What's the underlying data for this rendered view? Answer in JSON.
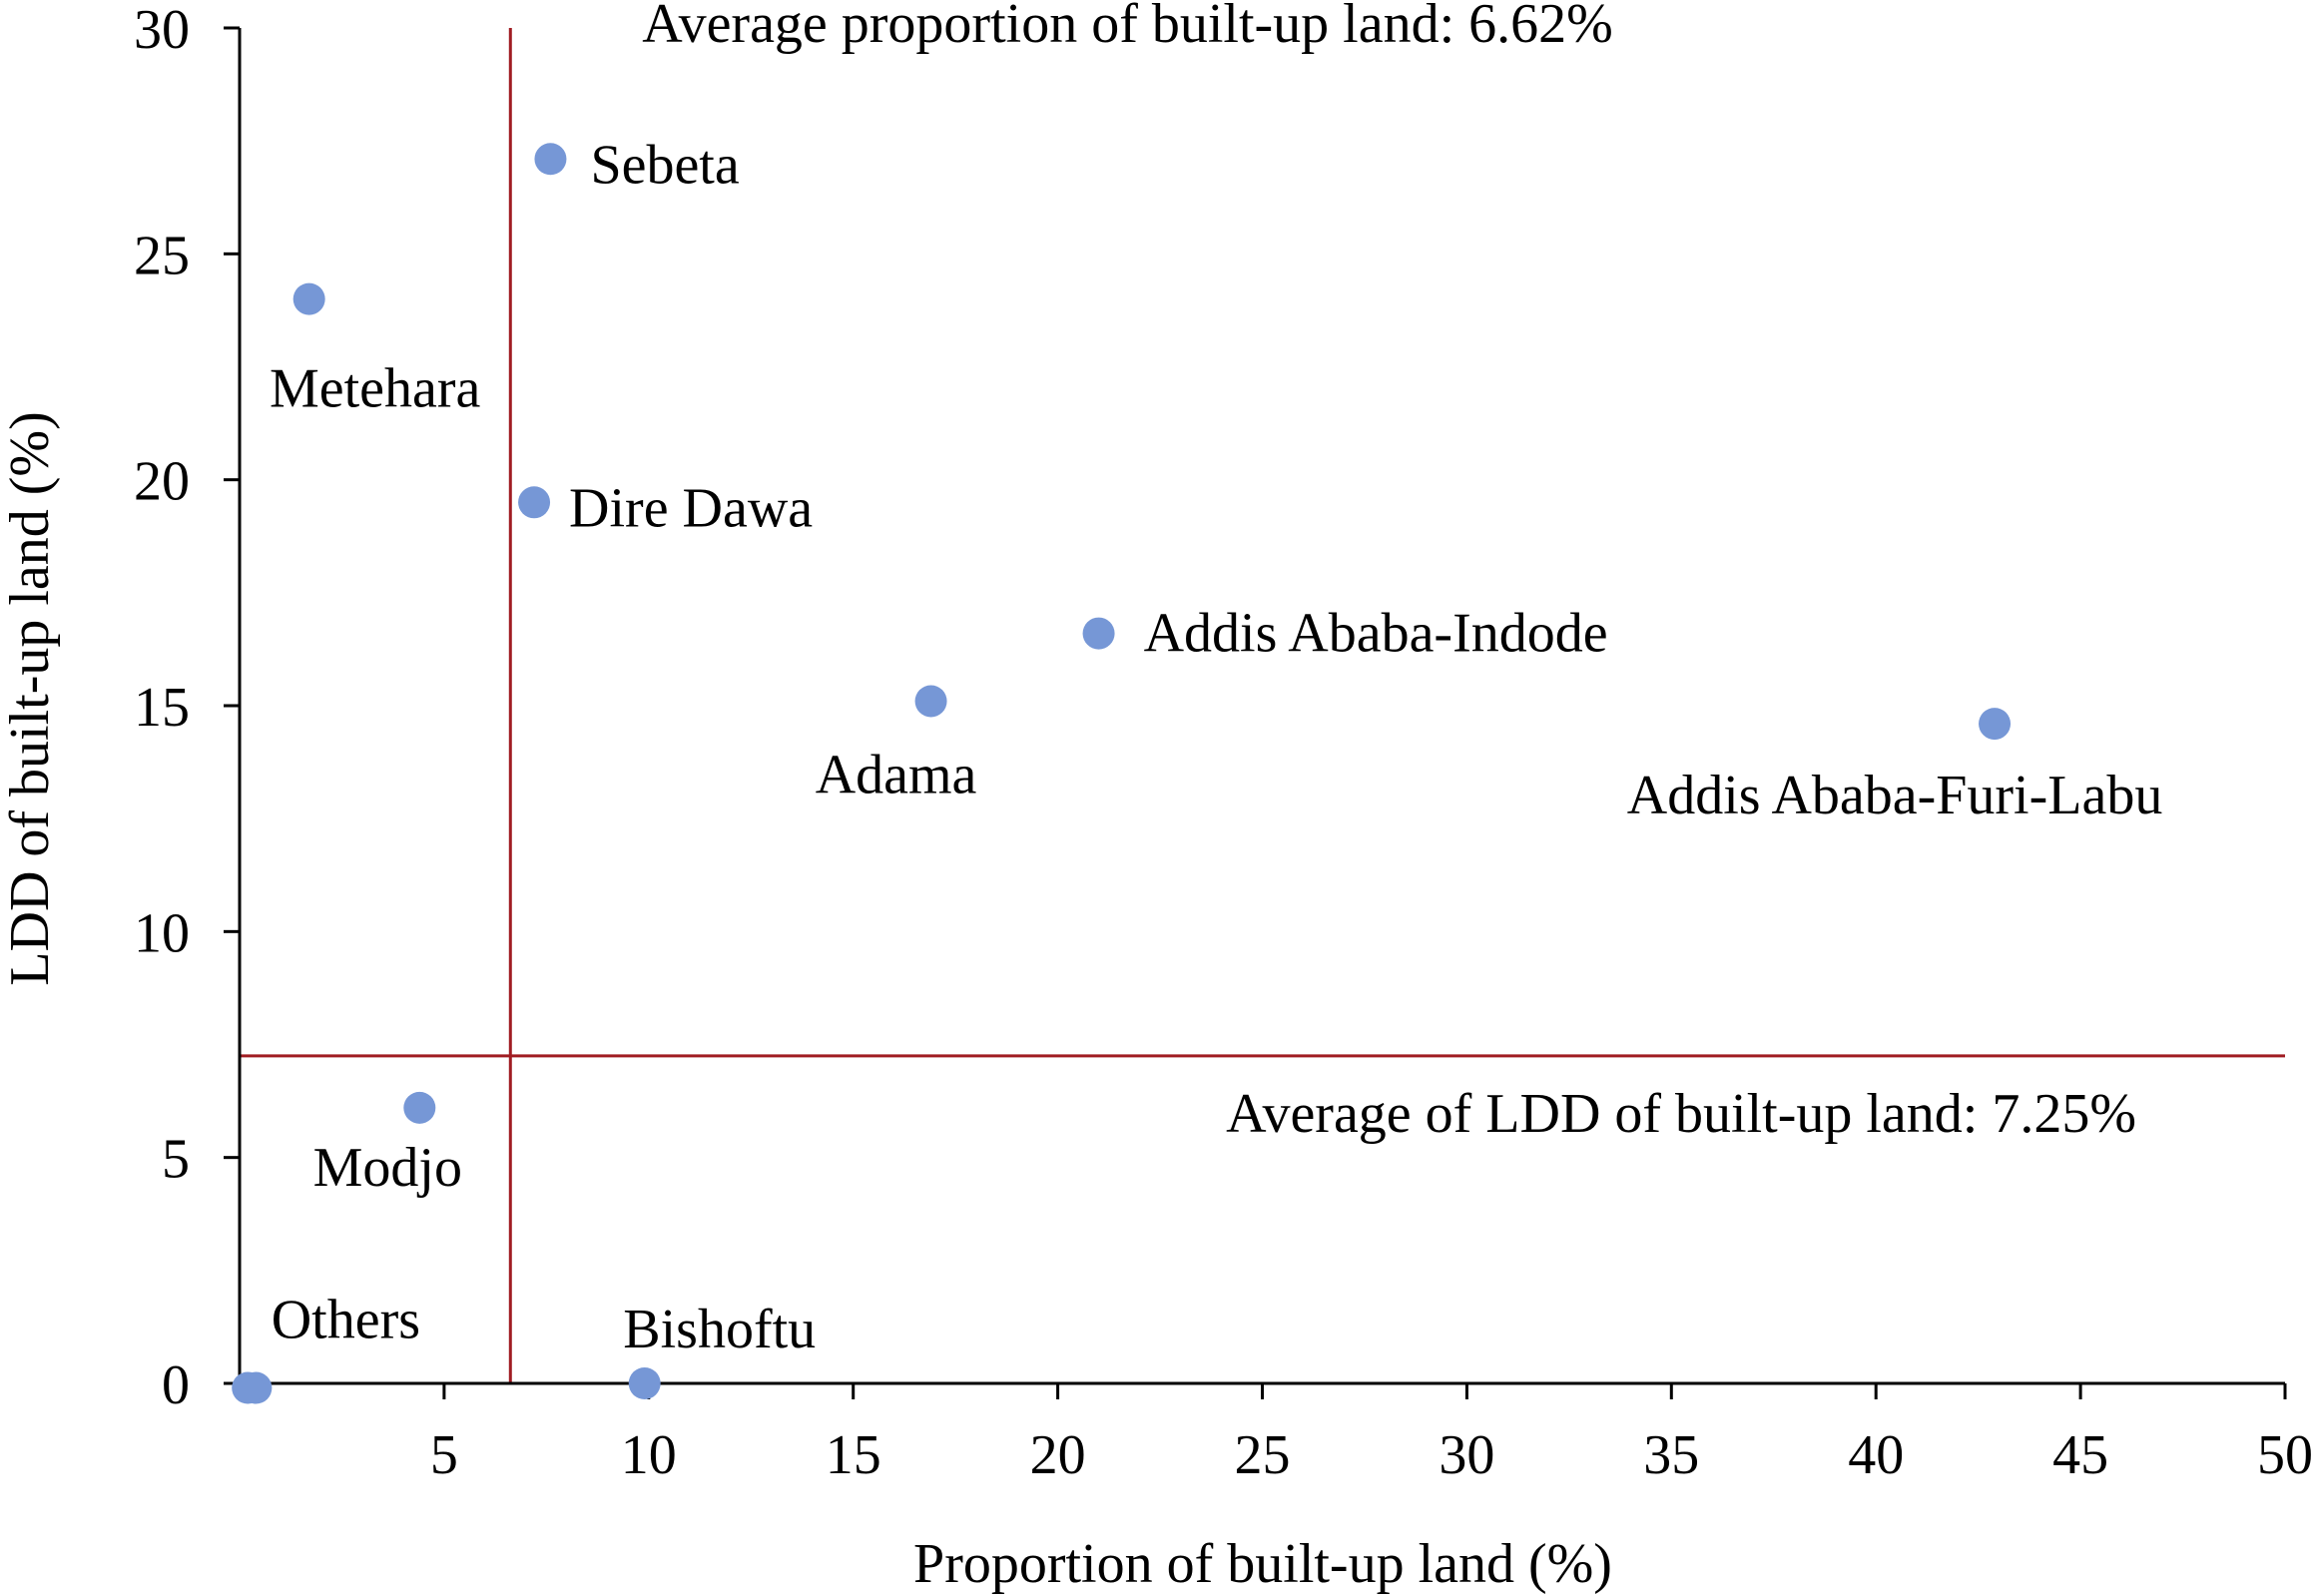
{
  "chart_data": {
    "type": "scatter",
    "title": "",
    "xlabel": "Proportion of built-up land (%)",
    "ylabel": "LDD of built-up land (%)",
    "xlim": [
      0,
      50
    ],
    "ylim": [
      0,
      30
    ],
    "x_ticks": [
      5,
      10,
      15,
      20,
      25,
      30,
      35,
      40,
      45,
      50
    ],
    "y_ticks": [
      0,
      5,
      10,
      15,
      20,
      25,
      30
    ],
    "grid": false,
    "legend": "none",
    "point_color": "#7697d6",
    "reference_line_color": "#a01c22",
    "points": [
      {
        "x": 7.6,
        "y": 27.1,
        "label": "Sebeta"
      },
      {
        "x": 1.7,
        "y": 24.0,
        "label": "Metehara"
      },
      {
        "x": 7.2,
        "y": 19.5,
        "label": "Dire Dawa"
      },
      {
        "x": 21.0,
        "y": 16.6,
        "label": "Addis Ababa-Indode"
      },
      {
        "x": 16.9,
        "y": 15.1,
        "label": "Adama"
      },
      {
        "x": 42.9,
        "y": 14.6,
        "label": "Addis Ababa-Furi-Labu"
      },
      {
        "x": 4.4,
        "y": 6.1,
        "label": "Modjo"
      },
      {
        "x": 9.9,
        "y": 0.0,
        "label": "Bishoftu"
      },
      {
        "x": 0.4,
        "y": -0.1,
        "label": "Others"
      },
      {
        "x": 0.2,
        "y": -0.1,
        "label": ""
      }
    ],
    "reference_lines": [
      {
        "orientation": "vertical",
        "value": 6.62,
        "label": "Average proportion of built-up land: 6.62%"
      },
      {
        "orientation": "horizontal",
        "value": 7.25,
        "label": "Average of LDD of built-up land: 7.25%"
      }
    ]
  }
}
